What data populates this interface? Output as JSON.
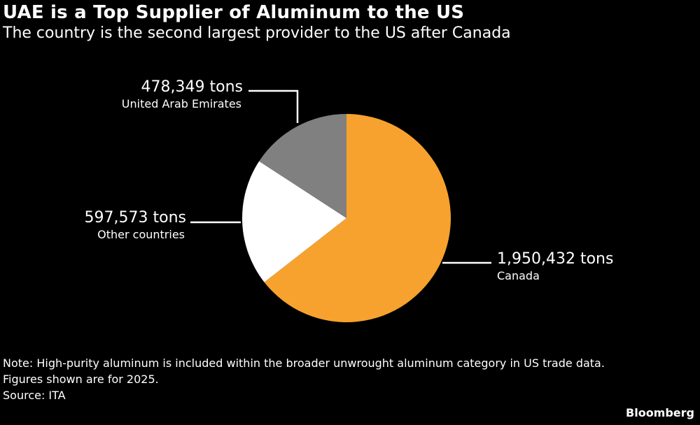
{
  "header": {
    "title": "UAE is a Top Supplier of Aluminum to the US",
    "subtitle": "The country is the second largest provider to the US after Canada"
  },
  "chart_data": {
    "type": "pie",
    "slices": [
      {
        "label": "Canada",
        "value": 1950432,
        "value_text": "1,950,432 tons",
        "color": "#f7a22e"
      },
      {
        "label": "Other countries",
        "value": 597573,
        "value_text": "597,573 tons",
        "color": "#ffffff"
      },
      {
        "label": "United Arab Emirates",
        "value": 478349,
        "value_text": "478,349 tons",
        "color": "#808080"
      }
    ],
    "start": "12 o'clock",
    "direction": "clockwise"
  },
  "footer": {
    "note_line1": "Note: High-purity aluminum is included within the broader unwrought aluminum category in US trade data.",
    "note_line2": "Figures shown are for 2025.",
    "source": "Source: ITA",
    "brand": "Bloomberg"
  },
  "colors": {
    "background": "#000000",
    "text": "#ffffff",
    "leader": "#ffffff"
  }
}
